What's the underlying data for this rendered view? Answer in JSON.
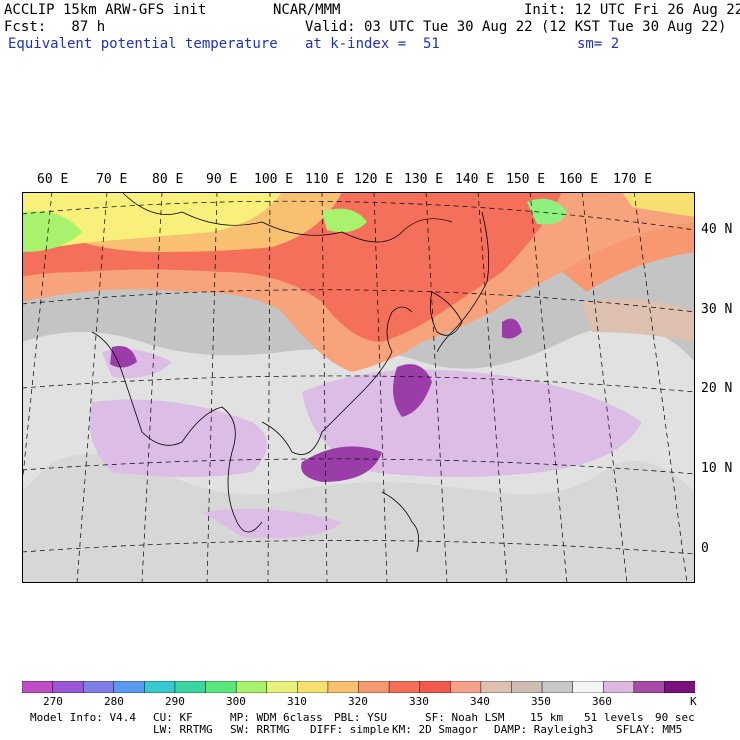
{
  "header": {
    "title": "ACCLIP 15km ARW-GFS init",
    "center": "NCAR/MMM",
    "init": "Init: 12 UTC Fri 26 Aug 22",
    "fcst": "Fcst:   87 h",
    "valid": "Valid: 03 UTC Tue 30 Aug 22 (12 KST Tue 30 Aug 22)",
    "field": "Equivalent potential temperature",
    "level": "at k-index =  51",
    "smooth": "sm= 2"
  },
  "map": {
    "lon_labels": [
      "60 E",
      "70 E",
      "80 E",
      "90 E",
      "100 E",
      "110 E",
      "120 E",
      "130 E",
      "140 E",
      "150 E",
      "160 E",
      "170 E"
    ],
    "lat_labels": [
      "40 N",
      "30 N",
      "20 N",
      "10 N",
      "0"
    ],
    "colors": {
      "very_warm": "#f05a4e",
      "warm": "#f7a37c",
      "yellow": "#f8f07a",
      "green": "#8ef07e",
      "gray": "#c0c0c0",
      "light_gray": "#ececec",
      "lilac": "#dcbde5",
      "purple": "#9b3da8"
    }
  },
  "colorbar": {
    "colors": [
      "#c04dc6",
      "#9a58d6",
      "#7d7fe6",
      "#5a9af0",
      "#38c8d0",
      "#3ad6a0",
      "#5ae87e",
      "#a8f26e",
      "#e8f27a",
      "#f8e070",
      "#f8c070",
      "#f79870",
      "#f5705a",
      "#f05a4e",
      "#f7a08a",
      "#ddc0b0",
      "#cdbdb2",
      "#c8c8c8",
      "#f4f4f4",
      "#dcb8e0",
      "#a84aa8",
      "#7a0f7e"
    ],
    "ticks": [
      "270",
      "280",
      "290",
      "300",
      "310",
      "320",
      "330",
      "340",
      "350",
      "360"
    ],
    "unit": "K"
  },
  "footer": {
    "line1": [
      "Model Info: V4.4",
      "CU: KF",
      "MP: WDM 6class",
      "PBL: YSU",
      "SF: Noah LSM",
      "15 km",
      "51 levels",
      "90 sec"
    ],
    "line2": [
      "LW: RRTMG",
      "SW: RRTMG",
      "DIFF: simple",
      "KM: 2D Smagor",
      "DAMP: Rayleigh3",
      "SFLAY: MM5"
    ]
  }
}
